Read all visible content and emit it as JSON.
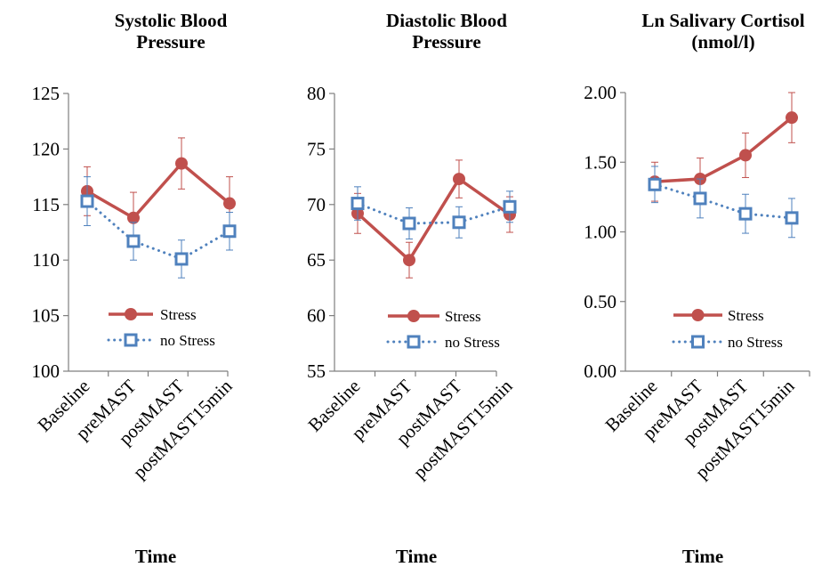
{
  "chart_data": [
    {
      "type": "line",
      "title_lines": [
        "Systolic Blood",
        "Pressure"
      ],
      "xlabel": "Time",
      "ylabel": "",
      "categories": [
        "Baseline",
        "preMAST",
        "postMAST",
        "postMAST15min"
      ],
      "ylim": [
        100,
        125
      ],
      "yticks": [
        "100",
        "105",
        "110",
        "115",
        "120",
        "125"
      ],
      "ytick_values": [
        100,
        105,
        110,
        115,
        120,
        125
      ],
      "legend": "center",
      "grid": false,
      "series": [
        {
          "name": "Stress",
          "color": "#c0504d",
          "style": "solid",
          "marker": "filled-circle",
          "values": [
            116.2,
            113.8,
            118.7,
            115.1
          ],
          "errors": [
            2.2,
            2.3,
            2.3,
            2.4
          ]
        },
        {
          "name": "no Stress",
          "color": "#4f81bd",
          "style": "dotted",
          "marker": "open-square",
          "values": [
            115.3,
            111.7,
            110.1,
            112.6
          ],
          "errors": [
            2.2,
            1.7,
            1.7,
            1.7
          ]
        }
      ]
    },
    {
      "type": "line",
      "title_lines": [
        "Diastolic Blood",
        "Pressure"
      ],
      "xlabel": "Time",
      "ylabel": "",
      "categories": [
        "Baseline",
        "preMAST",
        "postMAST",
        "postMAST15min"
      ],
      "ylim": [
        55,
        80
      ],
      "yticks": [
        "55",
        "60",
        "65",
        "70",
        "75",
        "80"
      ],
      "ytick_values": [
        55,
        60,
        65,
        70,
        75,
        80
      ],
      "legend": "center",
      "grid": false,
      "series": [
        {
          "name": "Stress",
          "color": "#c0504d",
          "style": "solid",
          "marker": "filled-circle",
          "values": [
            69.2,
            65.0,
            72.3,
            69.1
          ],
          "errors": [
            1.8,
            1.6,
            1.7,
            1.6
          ]
        },
        {
          "name": "no Stress",
          "color": "#4f81bd",
          "style": "dotted",
          "marker": "open-square",
          "values": [
            70.1,
            68.3,
            68.4,
            69.8
          ],
          "errors": [
            1.5,
            1.4,
            1.4,
            1.4
          ]
        }
      ]
    },
    {
      "type": "line",
      "title_lines": [
        "Ln Salivary Cortisol",
        "(nmol/l)"
      ],
      "xlabel": "Time",
      "ylabel": "",
      "categories": [
        "Baseline",
        "preMAST",
        "postMAST",
        "postMAST15min"
      ],
      "ylim": [
        0,
        2
      ],
      "yticks": [
        "0.00",
        "0.50",
        "1.00",
        "1.50",
        "2.00"
      ],
      "ytick_values": [
        0,
        0.5,
        1.0,
        1.5,
        2.0
      ],
      "legend": "center-right",
      "grid": false,
      "series": [
        {
          "name": "Stress",
          "color": "#c0504d",
          "style": "solid",
          "marker": "filled-circle",
          "values": [
            1.36,
            1.38,
            1.55,
            1.82
          ],
          "errors": [
            0.14,
            0.15,
            0.16,
            0.18
          ]
        },
        {
          "name": "no Stress",
          "color": "#4f81bd",
          "style": "dotted",
          "marker": "open-square",
          "values": [
            1.34,
            1.24,
            1.13,
            1.1
          ],
          "errors": [
            0.13,
            0.14,
            0.14,
            0.14
          ]
        }
      ]
    }
  ]
}
